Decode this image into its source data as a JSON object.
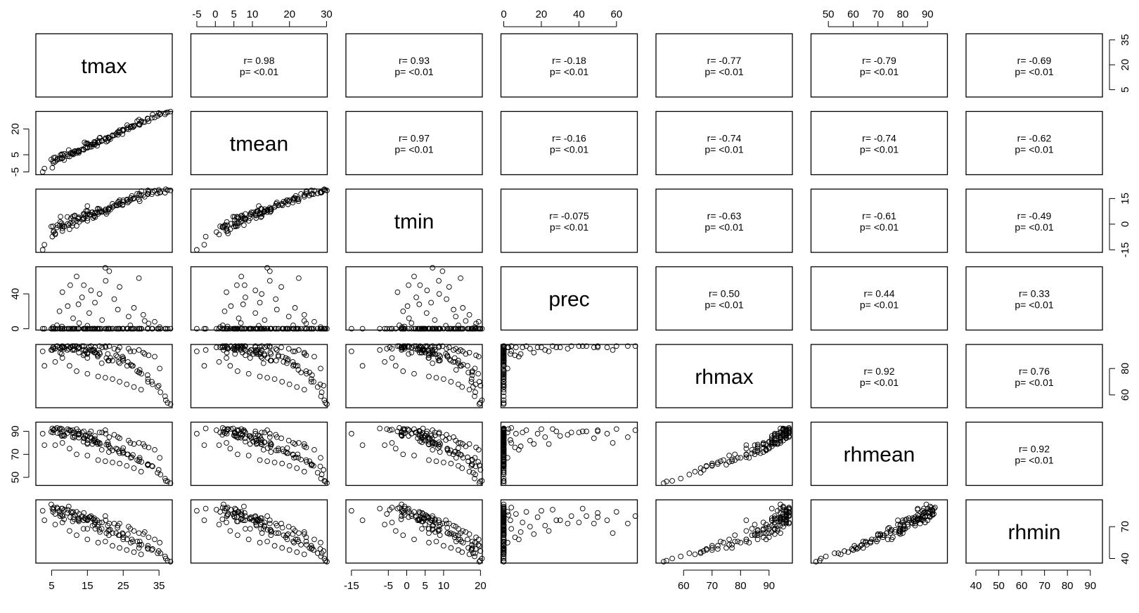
{
  "chart_data": {
    "type": "scatter",
    "chart_kind": "scatterplot-matrix",
    "variables": [
      "tmax",
      "tmean",
      "tmin",
      "prec",
      "rhmax",
      "rhmean",
      "rhmin"
    ],
    "axes": {
      "tmax": {
        "range": [
          0.6,
          38.7
        ],
        "ticks": [
          "5",
          "15",
          "25",
          "35"
        ],
        "ticks_side": [
          "5",
          "20",
          "35"
        ]
      },
      "tmean": {
        "range": [
          -6.6,
          30.2
        ],
        "ticks": [
          "-5",
          "0",
          "5",
          "10",
          "20",
          "30"
        ],
        "ticks_side": [
          "-5",
          "5",
          "20"
        ]
      },
      "tmin": {
        "range": [
          -16.5,
          20.5
        ],
        "ticks": [
          "-15",
          "-5",
          "0",
          "5",
          "10",
          "20"
        ],
        "ticks_side": [
          "-15",
          "0",
          "15"
        ]
      },
      "prec": {
        "range": [
          -1.5,
          71.1
        ],
        "ticks": [
          "0",
          "20",
          "40",
          "60"
        ],
        "ticks_side": [
          "0",
          "40"
        ]
      },
      "rhmax": {
        "range": [
          50.3,
          98.2
        ],
        "ticks": [
          "60",
          "70",
          "80",
          "90"
        ],
        "ticks_side": [
          "60",
          "80"
        ]
      },
      "rhmean": {
        "range": [
          43.0,
          98.0
        ],
        "ticks": [
          "50",
          "60",
          "70",
          "80",
          "90"
        ],
        "ticks_side": [
          "50",
          "70",
          "90"
        ]
      },
      "rhmin": {
        "range": [
          35.7,
          95.3
        ],
        "ticks": [
          "40",
          "50",
          "60",
          "70",
          "80",
          "90"
        ],
        "ticks_side": [
          "40",
          "70"
        ]
      }
    },
    "correlations": [
      {
        "a": "tmax",
        "b": "tmean",
        "r": "r= 0.98",
        "p": "p= <0.01"
      },
      {
        "a": "tmax",
        "b": "tmin",
        "r": "r= 0.93",
        "p": "p= <0.01"
      },
      {
        "a": "tmax",
        "b": "prec",
        "r": "r= -0.18",
        "p": "p= <0.01"
      },
      {
        "a": "tmax",
        "b": "rhmax",
        "r": "r= -0.77",
        "p": "p= <0.01"
      },
      {
        "a": "tmax",
        "b": "rhmean",
        "r": "r= -0.79",
        "p": "p= <0.01"
      },
      {
        "a": "tmax",
        "b": "rhmin",
        "r": "r= -0.69",
        "p": "p= <0.01"
      },
      {
        "a": "tmean",
        "b": "tmin",
        "r": "r= 0.97",
        "p": "p= <0.01"
      },
      {
        "a": "tmean",
        "b": "prec",
        "r": "r= -0.16",
        "p": "p= <0.01"
      },
      {
        "a": "tmean",
        "b": "rhmax",
        "r": "r= -0.74",
        "p": "p= <0.01"
      },
      {
        "a": "tmean",
        "b": "rhmean",
        "r": "r= -0.74",
        "p": "p= <0.01"
      },
      {
        "a": "tmean",
        "b": "rhmin",
        "r": "r= -0.62",
        "p": "p= <0.01"
      },
      {
        "a": "tmin",
        "b": "prec",
        "r": "r= -0.075",
        "p": "p= <0.01"
      },
      {
        "a": "tmin",
        "b": "rhmax",
        "r": "r= -0.63",
        "p": "p= <0.01"
      },
      {
        "a": "tmin",
        "b": "rhmean",
        "r": "r= -0.61",
        "p": "p= <0.01"
      },
      {
        "a": "tmin",
        "b": "rhmin",
        "r": "r= -0.49",
        "p": "p= <0.01"
      },
      {
        "a": "prec",
        "b": "rhmax",
        "r": "r= 0.50",
        "p": "p= <0.01"
      },
      {
        "a": "prec",
        "b": "rhmean",
        "r": "r= 0.44",
        "p": "p= <0.01"
      },
      {
        "a": "prec",
        "b": "rhmin",
        "r": "r= 0.33",
        "p": "p= <0.01"
      },
      {
        "a": "rhmax",
        "b": "rhmean",
        "r": "r= 0.92",
        "p": "p= <0.01"
      },
      {
        "a": "rhmax",
        "b": "rhmin",
        "r": "r= 0.76",
        "p": "p= <0.01"
      },
      {
        "a": "rhmean",
        "b": "rhmin",
        "r": "r= 0.92",
        "p": "p= <0.01"
      }
    ],
    "observations": [
      [
        5.5,
        0.3,
        -4.6,
        0.0,
        96.0,
        91.0,
        86.0
      ],
      [
        5.4,
        1.3,
        -1.3,
        2.0,
        96.0,
        89.0,
        84.0
      ],
      [
        10.8,
        5.4,
        -0.9,
        0.0,
        97.0,
        88.5,
        83.0
      ],
      [
        4.9,
        2.2,
        -1.4,
        0.0,
        94.0,
        89.5,
        91.0
      ],
      [
        6.0,
        3.4,
        -5.4,
        0.0,
        95.0,
        92.0,
        82.0
      ],
      [
        7.5,
        4.8,
        4.4,
        0.0,
        95.0,
        92.5,
        82.0
      ],
      [
        11.1,
        5.2,
        2.4,
        0.0,
        95.0,
        89.0,
        79.0
      ],
      [
        7.9,
        3.3,
        -0.6,
        2.5,
        96.0,
        92.0,
        81.0
      ],
      [
        5.2,
        -2.6,
        -7.3,
        0.0,
        94.0,
        92.5,
        87.0
      ],
      [
        7.4,
        3.1,
        1.3,
        0.0,
        92.0,
        88.0,
        80.0
      ],
      [
        9.8,
        7.7,
        -0.6,
        0.0,
        95.0,
        91.0,
        89.0
      ],
      [
        7.8,
        5.3,
        0.5,
        0.0,
        91.0,
        86.0,
        87.0
      ],
      [
        12.7,
        6.9,
        1.3,
        6.5,
        96.0,
        88.0,
        82.0
      ],
      [
        8.6,
        5.6,
        -1.3,
        0.0,
        95.0,
        86.0,
        86.0
      ],
      [
        9.4,
        5.2,
        4.2,
        0.0,
        94.0,
        88.5,
        83.0
      ],
      [
        5.6,
        3.3,
        -4.0,
        0.0,
        95.0,
        91.5,
        88.0
      ],
      [
        8.1,
        5.0,
        -1.4,
        0.0,
        96.0,
        86.5,
        80.0
      ],
      [
        10.4,
        6.1,
        3.4,
        0.0,
        96.0,
        90.5,
        84.0
      ],
      [
        6.6,
        2.6,
        -0.5,
        0.0,
        97.0,
        88.5,
        87.0
      ],
      [
        8.5,
        1.9,
        -1.5,
        0.0,
        96.0,
        87.0,
        77.0
      ],
      [
        12.6,
        6.1,
        4.0,
        0.0,
        96.0,
        84.5,
        75.0
      ],
      [
        12.4,
        6.9,
        3.1,
        0.0,
        95.0,
        87.5,
        77.0
      ],
      [
        11.5,
        7.2,
        5.1,
        0.0,
        97.0,
        86.0,
        81.0
      ],
      [
        10.9,
        5.8,
        4.4,
        0.0,
        94.0,
        85.0,
        75.0
      ],
      [
        12.6,
        7.3,
        4.0,
        0.0,
        92.0,
        87.0,
        78.0
      ],
      [
        11.3,
        6.9,
        4.8,
        0.0,
        94.0,
        84.5,
        77.0
      ],
      [
        14.6,
        11.5,
        7.7,
        0.0,
        94.0,
        86.5,
        77.0
      ],
      [
        17.2,
        12.3,
        4.1,
        0.0,
        92.0,
        80.5,
        68.0
      ],
      [
        14.2,
        12.2,
        6.0,
        0.0,
        91.0,
        84.0,
        78.0
      ],
      [
        15.7,
        9.6,
        5.8,
        0.0,
        94.0,
        85.0,
        79.0
      ],
      [
        15.0,
        9.4,
        3.5,
        0.0,
        92.0,
        86.0,
        77.0
      ],
      [
        14.4,
        9.2,
        4.8,
        0.0,
        93.0,
        86.0,
        78.0
      ],
      [
        15.0,
        11.2,
        7.6,
        0.0,
        91.0,
        80.0,
        76.0
      ],
      [
        17.1,
        10.9,
        6.3,
        0.0,
        92.0,
        83.5,
        74.0
      ],
      [
        16.6,
        11.0,
        3.6,
        0.0,
        94.0,
        81.5,
        77.0
      ],
      [
        15.0,
        11.7,
        10.6,
        3.5,
        91.0,
        82.5,
        76.0
      ],
      [
        16.2,
        9.7,
        6.9,
        0.0,
        94.0,
        84.0,
        78.0
      ],
      [
        13.9,
        8.1,
        6.0,
        0.0,
        90.0,
        81.0,
        68.0
      ],
      [
        16.9,
        12.5,
        4.6,
        0.0,
        94.0,
        82.5,
        78.0
      ],
      [
        20.7,
        13.2,
        7.2,
        0.0,
        91.0,
        80.5,
        71.0
      ],
      [
        15.0,
        9.4,
        5.9,
        0.0,
        88.0,
        79.0,
        68.0
      ],
      [
        17.9,
        13.3,
        8.8,
        0.0,
        90.0,
        80.5,
        70.0
      ],
      [
        17.7,
        10.2,
        6.9,
        0.0,
        91.0,
        81.0,
        76.0
      ],
      [
        16.4,
        11.1,
        7.0,
        0.0,
        93.0,
        79.0,
        71.0
      ],
      [
        20.3,
        12.6,
        6.0,
        0.0,
        88.0,
        78.5,
        64.0
      ],
      [
        18.4,
        14.8,
        7.0,
        0.0,
        92.0,
        80.0,
        67.0
      ],
      [
        17.9,
        12.3,
        9.1,
        0.0,
        89.0,
        79.0,
        72.0
      ],
      [
        20.8,
        15.1,
        8.6,
        0.0,
        86.0,
        78.5,
        66.0
      ],
      [
        18.5,
        15.0,
        7.7,
        0.0,
        91.0,
        79.0,
        65.0
      ],
      [
        21.0,
        14.9,
        8.9,
        0.0,
        86.0,
        77.0,
        67.0
      ],
      [
        21.4,
        14.1,
        8.5,
        0.0,
        88.0,
        75.5,
        67.0
      ],
      [
        23.4,
        18.1,
        11.0,
        0.0,
        89.0,
        74.5,
        69.0
      ],
      [
        22.0,
        16.4,
        11.9,
        0.0,
        86.0,
        73.5,
        64.0
      ],
      [
        24.8,
        17.0,
        11.1,
        0.0,
        89.0,
        73.5,
        64.0
      ],
      [
        25.0,
        19.4,
        14.0,
        0.0,
        86.0,
        75.5,
        58.0
      ],
      [
        24.9,
        19.6,
        11.6,
        0.0,
        87.0,
        71.0,
        63.0
      ],
      [
        23.7,
        18.4,
        13.2,
        0.0,
        85.0,
        72.5,
        62.0
      ],
      [
        26.3,
        20.9,
        12.6,
        0.0,
        85.0,
        70.0,
        63.0
      ],
      [
        24.0,
        19.3,
        14.0,
        0.0,
        84.0,
        71.0,
        62.0
      ],
      [
        26.1,
        22.2,
        14.5,
        0.0,
        82.0,
        70.0,
        58.0
      ],
      [
        27.7,
        21.0,
        14.8,
        0.0,
        82.0,
        69.5,
        56.0
      ],
      [
        27.4,
        21.7,
        16.5,
        0.0,
        82.0,
        67.5,
        58.0
      ],
      [
        29.6,
        22.4,
        13.4,
        0.0,
        79.0,
        67.0,
        56.0
      ],
      [
        27.1,
        21.2,
        15.3,
        0.0,
        83.0,
        67.0,
        55.0
      ],
      [
        28.9,
        24.5,
        17.8,
        0.0,
        78.0,
        65.0,
        56.0
      ],
      [
        29.5,
        23.1,
        17.7,
        0.0,
        77.0,
        65.5,
        53.0
      ],
      [
        30.1,
        24.6,
        19.4,
        0.0,
        76.0,
        63.5,
        53.0
      ],
      [
        29.4,
        25.4,
        16.7,
        0.0,
        77.0,
        64.0,
        50.0
      ],
      [
        31.8,
        26.1,
        17.8,
        0.0,
        75.0,
        61.0,
        50.0
      ],
      [
        31.9,
        25.9,
        17.6,
        0.0,
        72.0,
        61.5,
        49.0
      ],
      [
        31.9,
        25.9,
        19.7,
        0.0,
        70.0,
        60.5,
        52.0
      ],
      [
        33.2,
        28.3,
        18.7,
        0.0,
        68.0,
        59.5,
        49.0
      ],
      [
        34.9,
        29.2,
        20.0,
        0.0,
        67.0,
        56.5,
        47.0
      ],
      [
        34.6,
        27.6,
        18.0,
        0.0,
        66.0,
        54.0,
        45.0
      ],
      [
        35.4,
        28.7,
        18.6,
        0.0,
        62.0,
        52.5,
        45.0
      ],
      [
        36.7,
        28.5,
        18.4,
        0.0,
        59.0,
        49.0,
        42.0
      ],
      [
        36.9,
        29.4,
        20.4,
        0.0,
        56.0,
        47.0,
        40.0
      ],
      [
        37.4,
        29.7,
        19.9,
        0.0,
        54.0,
        46.5,
        38.0
      ],
      [
        38.2,
        30.1,
        19.7,
        0.0,
        53.0,
        45.0,
        37.0
      ],
      [
        33.0,
        26.5,
        17.5,
        0.0,
        70.0,
        60.0,
        48.0
      ],
      [
        6.5,
        2.0,
        -2.0,
        4.0,
        97.0,
        93.0,
        88.0
      ],
      [
        7.2,
        2.5,
        -1.0,
        20.0,
        96.0,
        92.0,
        85.0
      ],
      [
        8.0,
        3.0,
        -2.5,
        42.0,
        97.0,
        90.0,
        87.0
      ],
      [
        9.5,
        4.2,
        0.2,
        26.0,
        97.0,
        92.0,
        86.0
      ],
      [
        10.2,
        5.8,
        0.5,
        50.0,
        96.0,
        91.0,
        79.0
      ],
      [
        11.0,
        6.3,
        0.6,
        12.0,
        97.0,
        91.0,
        84.0
      ],
      [
        12.5,
        7.5,
        3.4,
        28.0,
        96.0,
        90.0,
        76.0
      ],
      [
        13.5,
        8.1,
        2.6,
        36.0,
        97.0,
        89.0,
        80.0
      ],
      [
        14.0,
        7.9,
        3.6,
        50.0,
        97.0,
        90.0,
        83.0
      ],
      [
        15.5,
        10.8,
        5.4,
        18.0,
        96.0,
        88.0,
        79.0
      ],
      [
        16.0,
        10.8,
        5.5,
        44.0,
        97.0,
        90.0,
        80.0
      ],
      [
        17.1,
        12.0,
        6.6,
        30.0,
        96.0,
        86.0,
        76.0
      ],
      [
        18.4,
        12.5,
        8.8,
        40.0,
        97.0,
        89.0,
        74.0
      ],
      [
        19.1,
        13.3,
        7.6,
        10.0,
        96.0,
        89.0,
        74.0
      ],
      [
        20.1,
        14.7,
        8.7,
        55.0,
        96.0,
        88.0,
        76.0
      ],
      [
        21.1,
        14.7,
        9.7,
        66.0,
        97.0,
        85.0,
        73.0
      ],
      [
        22.5,
        16.3,
        10.8,
        34.0,
        95.0,
        87.0,
        73.0
      ],
      [
        23.5,
        16.6,
        12.7,
        22.0,
        94.0,
        85.0,
        71.0
      ],
      [
        24.0,
        17.8,
        11.5,
        48.0,
        96.0,
        84.0,
        73.0
      ],
      [
        26.5,
        19.8,
        13.3,
        14.0,
        95.0,
        82.0,
        70.0
      ],
      [
        28.0,
        21.5,
        15.2,
        24.0,
        93.0,
        79.0,
        66.0
      ],
      [
        29.4,
        22.5,
        14.6,
        58.0,
        94.0,
        80.0,
        64.0
      ],
      [
        30.6,
        24.0,
        17.0,
        16.0,
        92.0,
        79.0,
        63.0
      ],
      [
        32.1,
        24.5,
        18.8,
        6.0,
        90.0,
        76.0,
        60.0
      ],
      [
        33.8,
        26.7,
        19.5,
        8.0,
        89.0,
        74.0,
        58.0
      ],
      [
        35.2,
        28.4,
        18.5,
        2.0,
        80.0,
        67.0,
        55.0
      ],
      [
        20.0,
        14.0,
        7.0,
        70.0,
        97.0,
        91.0,
        80.0
      ],
      [
        12.0,
        7.0,
        2.0,
        60.0,
        97.0,
        92.0,
        84.0
      ],
      [
        27.0,
        21.0,
        14.0,
        4.0,
        93.0,
        80.0,
        68.0
      ],
      [
        31.0,
        24.0,
        16.0,
        9.0,
        91.0,
        77.0,
        65.0
      ],
      [
        10.0,
        4.0,
        -3.0,
        0.0,
        82.0,
        75.0,
        66.0
      ],
      [
        12.0,
        6.0,
        -1.0,
        0.0,
        78.0,
        70.0,
        62.0
      ],
      [
        15.0,
        9.0,
        2.0,
        0.0,
        76.0,
        69.0,
        58.0
      ],
      [
        18.0,
        12.0,
        6.0,
        0.0,
        74.0,
        65.0,
        55.0
      ],
      [
        20.0,
        14.0,
        8.0,
        0.0,
        73.0,
        64.0,
        56.0
      ],
      [
        22.0,
        16.0,
        10.0,
        0.0,
        72.0,
        63.0,
        52.0
      ],
      [
        24.0,
        18.0,
        12.0,
        0.0,
        70.0,
        62.0,
        50.0
      ],
      [
        26.0,
        20.0,
        14.0,
        0.0,
        68.0,
        60.0,
        48.0
      ],
      [
        28.0,
        22.0,
        15.0,
        0.0,
        66.0,
        58.0,
        46.0
      ],
      [
        30.0,
        24.0,
        17.0,
        0.0,
        64.0,
        55.0,
        44.0
      ],
      [
        25.0,
        19.0,
        13.0,
        0.0,
        88.0,
        72.0,
        60.0
      ],
      [
        23.0,
        17.0,
        11.0,
        0.0,
        90.0,
        75.0,
        64.0
      ],
      [
        21.0,
        15.0,
        9.0,
        0.0,
        86.0,
        72.0,
        62.0
      ],
      [
        19.0,
        13.0,
        7.0,
        0.0,
        84.0,
        74.0,
        68.0
      ],
      [
        17.0,
        11.0,
        5.0,
        0.0,
        92.0,
        82.0,
        72.0
      ],
      [
        14.0,
        8.0,
        3.0,
        0.0,
        94.0,
        84.0,
        76.0
      ],
      [
        8.0,
        3.0,
        -4.0,
        0.0,
        88.0,
        80.0,
        74.0
      ],
      [
        6.0,
        1.0,
        -6.0,
        0.0,
        85.0,
        78.0,
        72.0
      ],
      [
        3.0,
        -3.0,
        -12.0,
        0.0,
        82.0,
        78.0,
        76.0
      ],
      [
        2.5,
        -5.0,
        -15.0,
        0.0,
        93.0,
        88.0,
        85.0
      ]
    ]
  }
}
